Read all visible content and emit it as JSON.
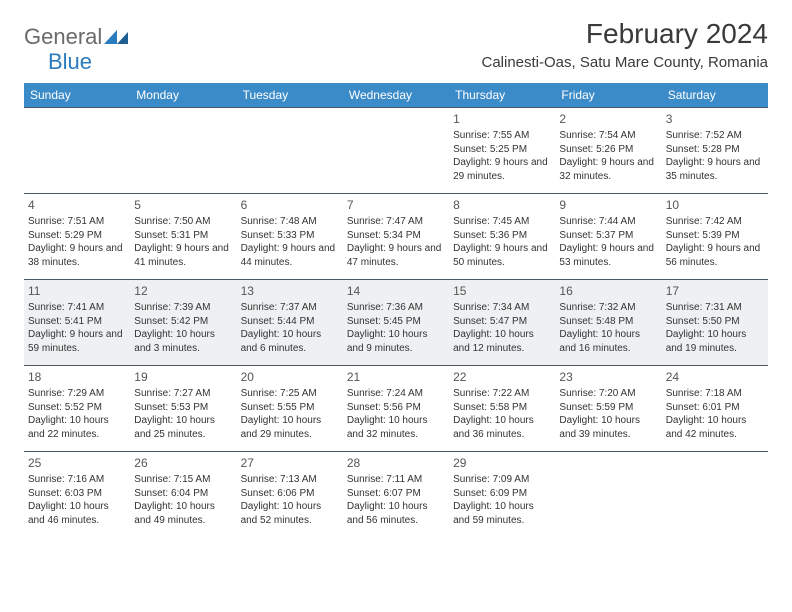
{
  "logo": {
    "text1": "General",
    "text2": "Blue"
  },
  "title": "February 2024",
  "location": "Calinesti-Oas, Satu Mare County, Romania",
  "colors": {
    "header_bg": "#3b8bc9",
    "header_text": "#ffffff",
    "row_shade": "#eef0f2",
    "border": "#4a5a6a",
    "logo_gray": "#6a6a6a",
    "logo_blue": "#2b7bbf"
  },
  "day_headers": [
    "Sunday",
    "Monday",
    "Tuesday",
    "Wednesday",
    "Thursday",
    "Friday",
    "Saturday"
  ],
  "weeks": [
    {
      "shaded": false,
      "days": [
        null,
        null,
        null,
        null,
        {
          "n": "1",
          "sunrise": "7:55 AM",
          "sunset": "5:25 PM",
          "daylight": "9 hours and 29 minutes."
        },
        {
          "n": "2",
          "sunrise": "7:54 AM",
          "sunset": "5:26 PM",
          "daylight": "9 hours and 32 minutes."
        },
        {
          "n": "3",
          "sunrise": "7:52 AM",
          "sunset": "5:28 PM",
          "daylight": "9 hours and 35 minutes."
        }
      ]
    },
    {
      "shaded": false,
      "days": [
        {
          "n": "4",
          "sunrise": "7:51 AM",
          "sunset": "5:29 PM",
          "daylight": "9 hours and 38 minutes."
        },
        {
          "n": "5",
          "sunrise": "7:50 AM",
          "sunset": "5:31 PM",
          "daylight": "9 hours and 41 minutes."
        },
        {
          "n": "6",
          "sunrise": "7:48 AM",
          "sunset": "5:33 PM",
          "daylight": "9 hours and 44 minutes."
        },
        {
          "n": "7",
          "sunrise": "7:47 AM",
          "sunset": "5:34 PM",
          "daylight": "9 hours and 47 minutes."
        },
        {
          "n": "8",
          "sunrise": "7:45 AM",
          "sunset": "5:36 PM",
          "daylight": "9 hours and 50 minutes."
        },
        {
          "n": "9",
          "sunrise": "7:44 AM",
          "sunset": "5:37 PM",
          "daylight": "9 hours and 53 minutes."
        },
        {
          "n": "10",
          "sunrise": "7:42 AM",
          "sunset": "5:39 PM",
          "daylight": "9 hours and 56 minutes."
        }
      ]
    },
    {
      "shaded": true,
      "days": [
        {
          "n": "11",
          "sunrise": "7:41 AM",
          "sunset": "5:41 PM",
          "daylight": "9 hours and 59 minutes."
        },
        {
          "n": "12",
          "sunrise": "7:39 AM",
          "sunset": "5:42 PM",
          "daylight": "10 hours and 3 minutes."
        },
        {
          "n": "13",
          "sunrise": "7:37 AM",
          "sunset": "5:44 PM",
          "daylight": "10 hours and 6 minutes."
        },
        {
          "n": "14",
          "sunrise": "7:36 AM",
          "sunset": "5:45 PM",
          "daylight": "10 hours and 9 minutes."
        },
        {
          "n": "15",
          "sunrise": "7:34 AM",
          "sunset": "5:47 PM",
          "daylight": "10 hours and 12 minutes."
        },
        {
          "n": "16",
          "sunrise": "7:32 AM",
          "sunset": "5:48 PM",
          "daylight": "10 hours and 16 minutes."
        },
        {
          "n": "17",
          "sunrise": "7:31 AM",
          "sunset": "5:50 PM",
          "daylight": "10 hours and 19 minutes."
        }
      ]
    },
    {
      "shaded": false,
      "days": [
        {
          "n": "18",
          "sunrise": "7:29 AM",
          "sunset": "5:52 PM",
          "daylight": "10 hours and 22 minutes."
        },
        {
          "n": "19",
          "sunrise": "7:27 AM",
          "sunset": "5:53 PM",
          "daylight": "10 hours and 25 minutes."
        },
        {
          "n": "20",
          "sunrise": "7:25 AM",
          "sunset": "5:55 PM",
          "daylight": "10 hours and 29 minutes."
        },
        {
          "n": "21",
          "sunrise": "7:24 AM",
          "sunset": "5:56 PM",
          "daylight": "10 hours and 32 minutes."
        },
        {
          "n": "22",
          "sunrise": "7:22 AM",
          "sunset": "5:58 PM",
          "daylight": "10 hours and 36 minutes."
        },
        {
          "n": "23",
          "sunrise": "7:20 AM",
          "sunset": "5:59 PM",
          "daylight": "10 hours and 39 minutes."
        },
        {
          "n": "24",
          "sunrise": "7:18 AM",
          "sunset": "6:01 PM",
          "daylight": "10 hours and 42 minutes."
        }
      ]
    },
    {
      "shaded": false,
      "days": [
        {
          "n": "25",
          "sunrise": "7:16 AM",
          "sunset": "6:03 PM",
          "daylight": "10 hours and 46 minutes."
        },
        {
          "n": "26",
          "sunrise": "7:15 AM",
          "sunset": "6:04 PM",
          "daylight": "10 hours and 49 minutes."
        },
        {
          "n": "27",
          "sunrise": "7:13 AM",
          "sunset": "6:06 PM",
          "daylight": "10 hours and 52 minutes."
        },
        {
          "n": "28",
          "sunrise": "7:11 AM",
          "sunset": "6:07 PM",
          "daylight": "10 hours and 56 minutes."
        },
        {
          "n": "29",
          "sunrise": "7:09 AM",
          "sunset": "6:09 PM",
          "daylight": "10 hours and 59 minutes."
        },
        null,
        null
      ]
    }
  ],
  "labels": {
    "sunrise": "Sunrise:",
    "sunset": "Sunset:",
    "daylight": "Daylight:"
  }
}
